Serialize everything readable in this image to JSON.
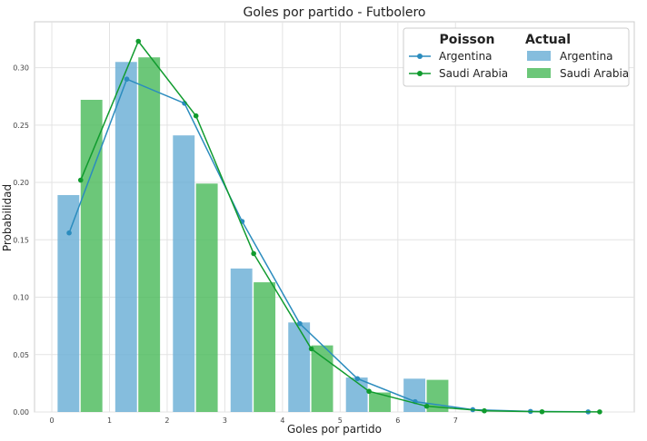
{
  "chart_data": {
    "type": "bar",
    "title": "Goles por partido - Futbolero",
    "xlabel": "Goles por partido",
    "ylabel": "Probabilidad",
    "xlim": [
      -0.3,
      10.1
    ],
    "ylim": [
      0,
      0.34
    ],
    "x_ticks": [
      0,
      1,
      2,
      3,
      4,
      5,
      6,
      7
    ],
    "y_ticks": [
      0.0,
      0.05,
      0.1,
      0.15,
      0.2,
      0.25,
      0.3
    ],
    "y_tick_labels": [
      "0.00",
      "0.05",
      "0.10",
      "0.15",
      "0.20",
      "0.25",
      "0.30"
    ],
    "grid": true,
    "legend": {
      "position": "top-right",
      "group_titles": {
        "poisson": "Poisson",
        "actual": "Actual"
      }
    },
    "bar_series": [
      {
        "name": "Argentina",
        "color": "#6aaed6",
        "x": [
          0,
          1,
          2,
          3,
          4,
          5,
          6
        ],
        "values": [
          0.189,
          0.305,
          0.241,
          0.125,
          0.078,
          0.03,
          0.029
        ]
      },
      {
        "name": "Saudi Arabia",
        "color": "#4cbb5c",
        "x": [
          0,
          1,
          2,
          3,
          4,
          5,
          6
        ],
        "values": [
          0.272,
          0.309,
          0.199,
          0.113,
          0.058,
          0.017,
          0.028
        ]
      }
    ],
    "line_series": [
      {
        "name": "Argentina",
        "color": "#2b8cbe",
        "x": [
          0.3,
          1.3,
          2.3,
          3.3,
          4.3,
          5.3,
          6.3,
          7.3,
          8.3,
          9.3
        ],
        "values": [
          0.156,
          0.29,
          0.269,
          0.166,
          0.077,
          0.029,
          0.009,
          0.002,
          0.0005,
          0.0001
        ]
      },
      {
        "name": "Saudi Arabia",
        "color": "#109b2e",
        "x": [
          0.5,
          1.5,
          2.5,
          3.5,
          4.5,
          5.5,
          6.5,
          7.5,
          8.5,
          9.5
        ],
        "values": [
          0.202,
          0.323,
          0.258,
          0.138,
          0.055,
          0.018,
          0.005,
          0.001,
          0.0002,
          0.0001
        ]
      }
    ]
  }
}
